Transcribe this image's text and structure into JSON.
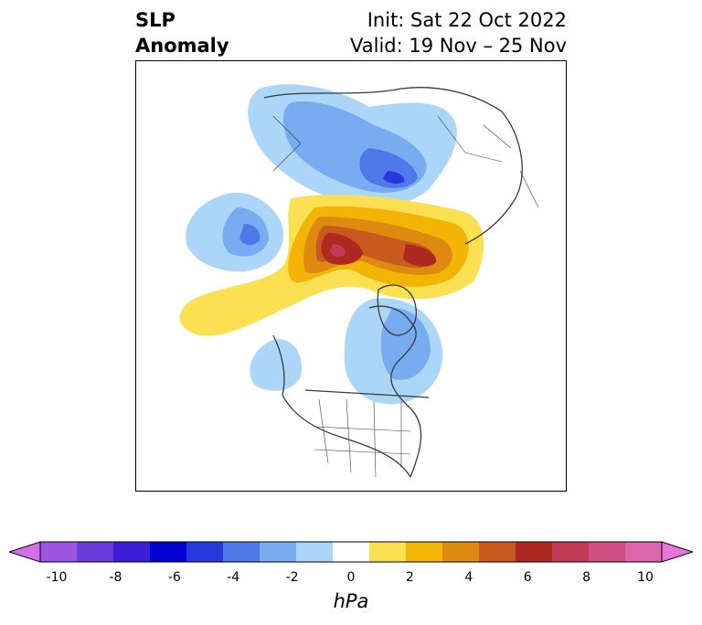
{
  "title": {
    "variable_line1": "SLP",
    "variable_line2": "Anomaly",
    "init": "Init: Sat 22 Oct 2022",
    "valid": "Valid: 19 Nov – 25 Nov"
  },
  "colorbar": {
    "units": "hPa",
    "tick_labels": [
      "-10",
      "-8",
      "-6",
      "-4",
      "-2",
      "0",
      "2",
      "4",
      "6",
      "8",
      "10"
    ],
    "extend": "both",
    "colors": [
      "#d56fe8",
      "#9b55e0",
      "#6a3bd9",
      "#3a1fd6",
      "#0000d2",
      "#2838dc",
      "#4f78e8",
      "#78acf0",
      "#acd6f8",
      "#ffffff",
      "#fbe052",
      "#f2b405",
      "#de8a0e",
      "#c95a1e",
      "#b02822",
      "#c23a55",
      "#d15082",
      "#dc65ac",
      "#e876d8"
    ]
  },
  "map": {
    "projection": "north-polar-stereographic",
    "colors": {
      "neg_light": "#acd6f8",
      "neg_mid": "#78acf0",
      "neg_strong": "#4f78e8",
      "neg_deep": "#2838dc",
      "pos_light": "#fbe052",
      "pos_mid": "#f2b405",
      "pos_orange": "#de8a0e",
      "pos_strong": "#c95a1e",
      "pos_deep": "#b02822",
      "pos_max": "#c23a55",
      "coast": "#3a3a3a"
    }
  }
}
